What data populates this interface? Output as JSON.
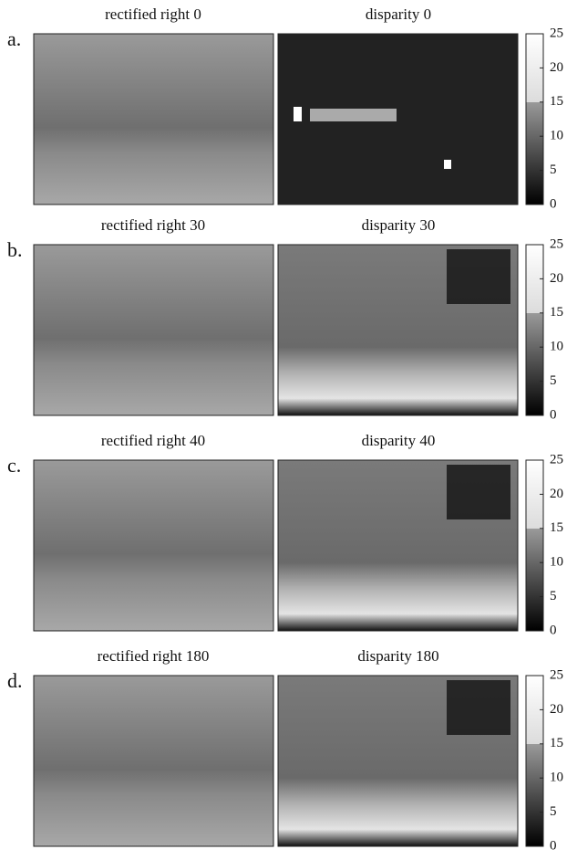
{
  "rows": [
    {
      "label": "a.",
      "left_title": "rectified right 0",
      "right_title": "disparity 0"
    },
    {
      "label": "b.",
      "left_title": "rectified right 30",
      "right_title": "disparity 30"
    },
    {
      "label": "c.",
      "left_title": "rectified right 40",
      "right_title": "disparity 40"
    },
    {
      "label": "d.",
      "left_title": "rectified right 180",
      "right_title": "disparity 180"
    }
  ],
  "colorbar": {
    "lim": [
      0,
      25
    ],
    "ticks": [
      0,
      5,
      10,
      15,
      20,
      25
    ]
  }
}
